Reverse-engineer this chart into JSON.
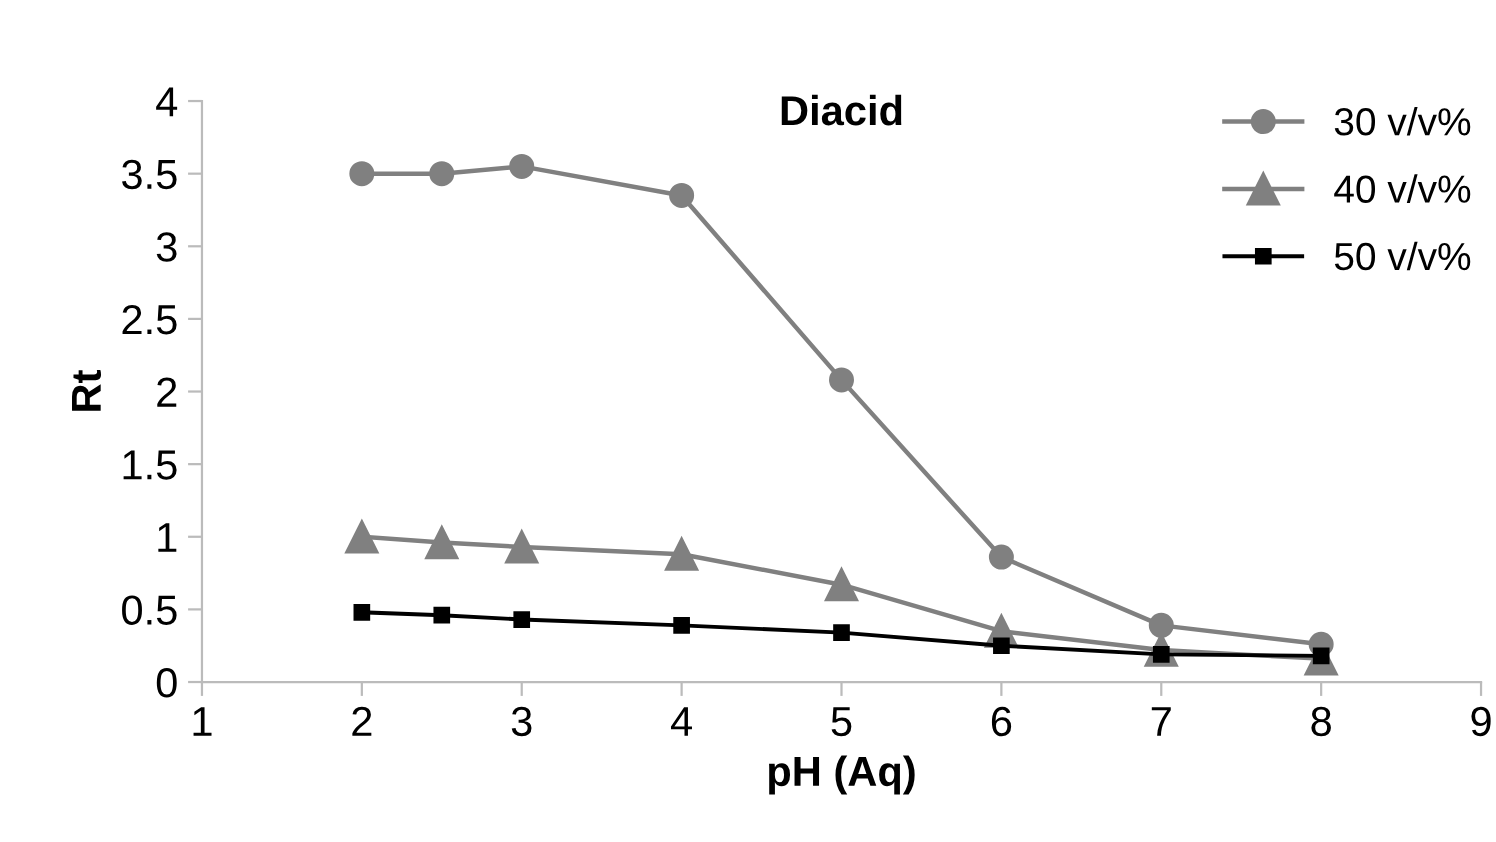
{
  "chart_data": {
    "type": "line",
    "title": "Diacid",
    "xlabel": "pH (Aq)",
    "ylabel": "Rt",
    "x": [
      2,
      2.5,
      3,
      4,
      5,
      6,
      7,
      8
    ],
    "series": [
      {
        "name": "30 v/v%",
        "color": "#808080",
        "marker": "circle",
        "values": [
          3.5,
          3.5,
          3.55,
          3.35,
          2.08,
          0.86,
          0.39,
          0.26
        ]
      },
      {
        "name": "40 v/v%",
        "color": "#808080",
        "marker": "triangle",
        "values": [
          1.0,
          0.96,
          0.93,
          0.88,
          0.67,
          0.35,
          0.22,
          0.16
        ]
      },
      {
        "name": "50 v/v%",
        "color": "#000000",
        "marker": "square",
        "values": [
          0.48,
          0.46,
          0.43,
          0.39,
          0.34,
          0.25,
          0.19,
          0.18
        ]
      }
    ],
    "xlim": [
      1,
      9
    ],
    "xticks": [
      1,
      2,
      3,
      4,
      5,
      6,
      7,
      8,
      9
    ],
    "ylim": [
      0,
      4
    ],
    "yticks": [
      0,
      0.5,
      1,
      1.5,
      2,
      2.5,
      3,
      3.5,
      4
    ],
    "grid": false,
    "legend": "top right"
  }
}
